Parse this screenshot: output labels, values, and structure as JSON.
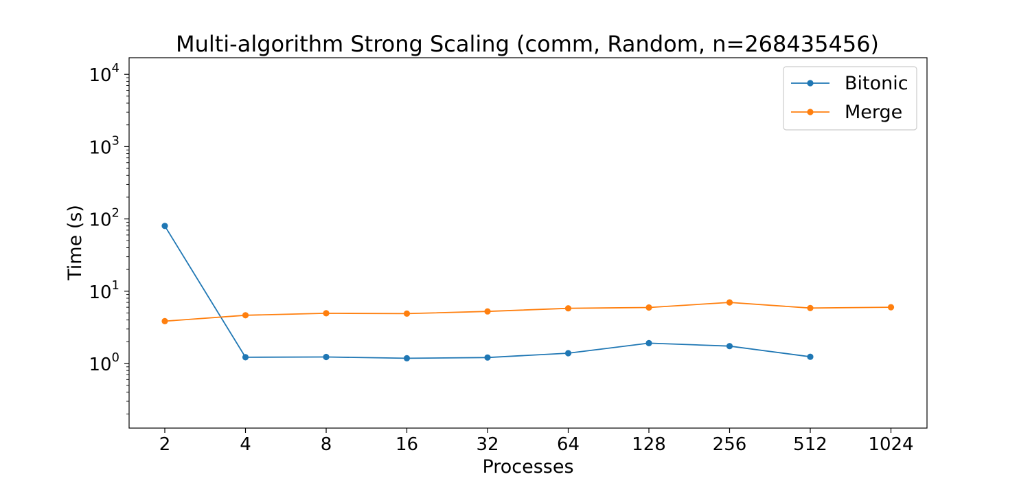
{
  "chart_data": {
    "type": "line",
    "title": "Multi-algorithm Strong Scaling (comm, Random, n=268435456)",
    "xlabel": "Processes",
    "ylabel": "Time (s)",
    "yscale": "log",
    "ylim": [
      0.13,
      16000
    ],
    "y_tick_exponents": [
      0,
      1,
      2,
      3,
      4
    ],
    "y_tick_base": "10",
    "categories": [
      "2",
      "4",
      "8",
      "16",
      "32",
      "64",
      "128",
      "256",
      "512",
      "1024"
    ],
    "series": [
      {
        "name": "Bitonic",
        "color": "#1f77b4",
        "values": [
          80,
          1.22,
          1.23,
          1.18,
          1.21,
          1.39,
          1.91,
          1.74,
          1.24,
          null
        ]
      },
      {
        "name": "Merge",
        "color": "#ff7f0e",
        "values": [
          3.85,
          4.65,
          4.95,
          4.9,
          5.25,
          5.8,
          5.95,
          7.0,
          5.85,
          6.0
        ]
      }
    ],
    "grid": false,
    "legend_position": "top-right",
    "marker": "circle"
  }
}
